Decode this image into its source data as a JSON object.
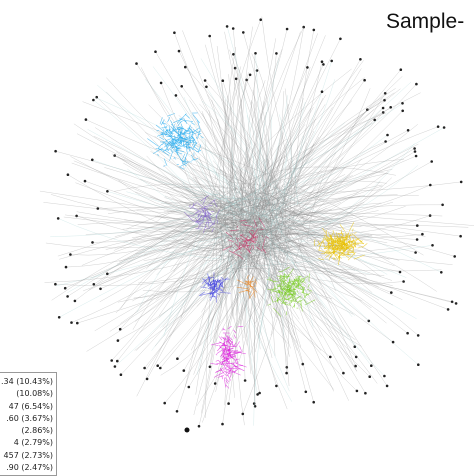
{
  "title": "Sample-",
  "legend": {
    "items": [
      ".34 (10.43%)",
      "(10.08%)",
      "47 (6.54%)",
      ".60 (3.67%)",
      "(2.86%)",
      "4 (2.79%)",
      "457 (2.73%)",
      ".90 (2.47%)"
    ]
  }
}
